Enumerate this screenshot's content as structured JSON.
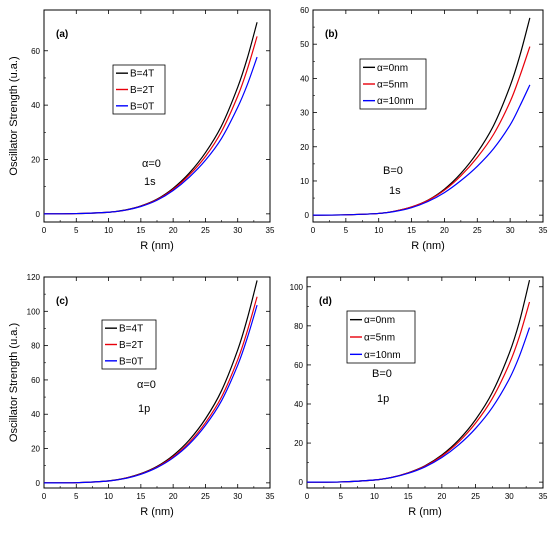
{
  "colors": {
    "black": "#000000",
    "red": "#e8000b",
    "blue": "#0000ff"
  },
  "chart_data": [
    {
      "type": "line",
      "panel": "(a)",
      "xlabel": "R (nm)",
      "ylabel": "Oscillator Strength (u.a.)",
      "xlim": [
        0,
        35
      ],
      "ylim": [
        -3,
        75
      ],
      "xticks": [
        0,
        5,
        10,
        15,
        20,
        25,
        30,
        35
      ],
      "yticks": [
        0,
        20,
        40,
        60
      ],
      "x": [
        0,
        5,
        10,
        12.5,
        15,
        17.5,
        20,
        22.5,
        25,
        27.5,
        30,
        31.5,
        33
      ],
      "series": [
        {
          "name": "B=4T",
          "color": "black",
          "values": [
            0,
            0.1,
            0.6,
            1.4,
            2.9,
            5.4,
            9.4,
            15.0,
            22.5,
            32.4,
            46.6,
            57.4,
            70.5
          ]
        },
        {
          "name": "B=2T",
          "color": "red",
          "values": [
            0,
            0.1,
            0.6,
            1.3,
            2.8,
            5.2,
            9.0,
            14.3,
            21.1,
            30.3,
            43.3,
            53.3,
            65.3
          ]
        },
        {
          "name": "B=0T",
          "color": "blue",
          "values": [
            0,
            0.1,
            0.6,
            1.3,
            2.7,
            5.0,
            8.6,
            13.5,
            19.7,
            27.8,
            39.2,
            47.6,
            57.7
          ]
        }
      ],
      "legend_position": "center-left",
      "annotations": [
        "α=0",
        "1s"
      ]
    },
    {
      "type": "line",
      "panel": "(b)",
      "xlabel": "R (nm)",
      "ylabel": "",
      "xlim": [
        0,
        35
      ],
      "ylim": [
        -2,
        60
      ],
      "xticks": [
        0,
        5,
        10,
        15,
        20,
        25,
        30,
        35
      ],
      "yticks": [
        0,
        10,
        20,
        30,
        40,
        50,
        60
      ],
      "x": [
        0,
        5,
        10,
        12.5,
        15,
        17.5,
        20,
        22.5,
        25,
        27.5,
        30,
        31.5,
        33
      ],
      "series": [
        {
          "name": "α=0nm",
          "color": "black",
          "values": [
            0,
            0.1,
            0.5,
            1.2,
            2.4,
            4.4,
            7.6,
            12.2,
            18.3,
            26.3,
            37.8,
            46.8,
            57.7
          ]
        },
        {
          "name": "α=5nm",
          "color": "red",
          "values": [
            0,
            0.1,
            0.5,
            1.2,
            2.4,
            4.3,
            7.3,
            11.5,
            16.9,
            23.7,
            33.2,
            40.8,
            49.3
          ]
        },
        {
          "name": "α=10nm",
          "color": "blue",
          "values": [
            0,
            0.1,
            0.5,
            1.1,
            2.2,
            4.0,
            6.6,
            10.1,
            14.3,
            19.5,
            26.4,
            32.0,
            38.1
          ]
        }
      ],
      "legend_position": "center-left",
      "annotations": [
        "B=0",
        "1s"
      ]
    },
    {
      "type": "line",
      "panel": "(c)",
      "xlabel": "R (nm)",
      "ylabel": "Oscillator Strength (u.a.)",
      "xlim": [
        0,
        35
      ],
      "ylim": [
        -3,
        120
      ],
      "xticks": [
        0,
        5,
        10,
        15,
        20,
        25,
        30,
        35
      ],
      "yticks": [
        0,
        20,
        40,
        60,
        80,
        100,
        120
      ],
      "x": [
        0,
        5,
        10,
        12.5,
        15,
        17.5,
        20,
        22.5,
        25,
        27.5,
        30,
        31.5,
        33
      ],
      "series": [
        {
          "name": "B=4T",
          "color": "black",
          "values": [
            0,
            0.1,
            1.2,
            2.7,
            5.4,
            9.6,
            16.0,
            25.0,
            37.3,
            53.8,
            77.5,
            96.0,
            118.0
          ]
        },
        {
          "name": "B=2T",
          "color": "red",
          "values": [
            0,
            0.1,
            1.1,
            2.6,
            5.2,
            9.2,
            15.2,
            23.6,
            35.0,
            50.1,
            71.8,
            88.7,
            108.5
          ]
        },
        {
          "name": "B=0T",
          "color": "blue",
          "values": [
            0,
            0.1,
            1.1,
            2.5,
            5.0,
            8.9,
            14.6,
            22.6,
            33.5,
            47.9,
            68.6,
            84.7,
            103.6
          ]
        }
      ],
      "legend_position": "center-left",
      "annotations": [
        "α=0",
        "1p"
      ]
    },
    {
      "type": "line",
      "panel": "(d)",
      "xlabel": "R (nm)",
      "ylabel": "",
      "xlim": [
        0,
        35
      ],
      "ylim": [
        -3,
        105
      ],
      "xticks": [
        0,
        5,
        10,
        15,
        20,
        25,
        30,
        35
      ],
      "yticks": [
        0,
        20,
        40,
        60,
        80,
        100
      ],
      "x": [
        0,
        5,
        10,
        12.5,
        15,
        17.5,
        20,
        22.5,
        25,
        27.5,
        30,
        31.5,
        33
      ],
      "series": [
        {
          "name": "α=0nm",
          "color": "black",
          "values": [
            0,
            0.1,
            1.1,
            2.4,
            4.8,
            8.4,
            13.9,
            21.6,
            32.0,
            46.0,
            66.0,
            82.1,
            103.4
          ]
        },
        {
          "name": "α=5nm",
          "color": "red",
          "values": [
            0,
            0.1,
            1.1,
            2.4,
            4.7,
            8.2,
            13.4,
            20.6,
            30.2,
            42.9,
            60.5,
            74.5,
            92.2
          ]
        },
        {
          "name": "α=10nm",
          "color": "blue",
          "values": [
            0,
            0.1,
            1.1,
            2.3,
            4.5,
            7.8,
            12.6,
            19.1,
            27.5,
            38.3,
            52.8,
            64.5,
            79.1
          ]
        }
      ],
      "legend_position": "center-left",
      "annotations": [
        "B=0",
        "1p"
      ]
    }
  ]
}
